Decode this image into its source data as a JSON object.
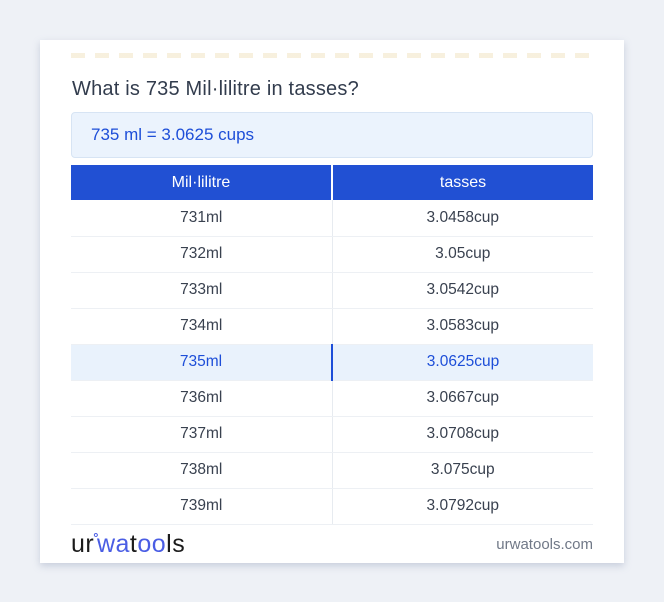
{
  "card": {
    "title": "What is 735 Mil·lilitre in tasses?",
    "result": "735 ml = 3.0625 cups"
  },
  "table": {
    "columns": [
      "Mil·lilitre",
      "tasses"
    ],
    "rows": [
      {
        "ml": "731ml",
        "cup": "3.0458cup",
        "highlight": false
      },
      {
        "ml": "732ml",
        "cup": "3.05cup",
        "highlight": false
      },
      {
        "ml": "733ml",
        "cup": "3.0542cup",
        "highlight": false
      },
      {
        "ml": "734ml",
        "cup": "3.0583cup",
        "highlight": false
      },
      {
        "ml": "735ml",
        "cup": "3.0625cup",
        "highlight": true
      },
      {
        "ml": "736ml",
        "cup": "3.0667cup",
        "highlight": false
      },
      {
        "ml": "737ml",
        "cup": "3.0708cup",
        "highlight": false
      },
      {
        "ml": "738ml",
        "cup": "3.075cup",
        "highlight": false
      },
      {
        "ml": "739ml",
        "cup": "3.0792cup",
        "highlight": false
      }
    ]
  },
  "footer": {
    "logo_parts": [
      {
        "text": "ur"
      },
      {
        "text": "°"
      },
      {
        "text": "wa"
      },
      {
        "text": "t"
      },
      {
        "text": "oo"
      },
      {
        "text": "ls"
      }
    ],
    "domain": "urwatools.com"
  },
  "colors": {
    "page_bg": "#eef1f6",
    "header_bg": "#2150d3",
    "accent_blue": "#1d4ed8",
    "highlight_row_bg": "#e9f2fc",
    "result_box_bg": "#ebf3fd",
    "result_box_border": "#d7e4f4",
    "logo_blue": "#4a5de4",
    "body_text": "#39414f",
    "domain_text": "#707887"
  }
}
